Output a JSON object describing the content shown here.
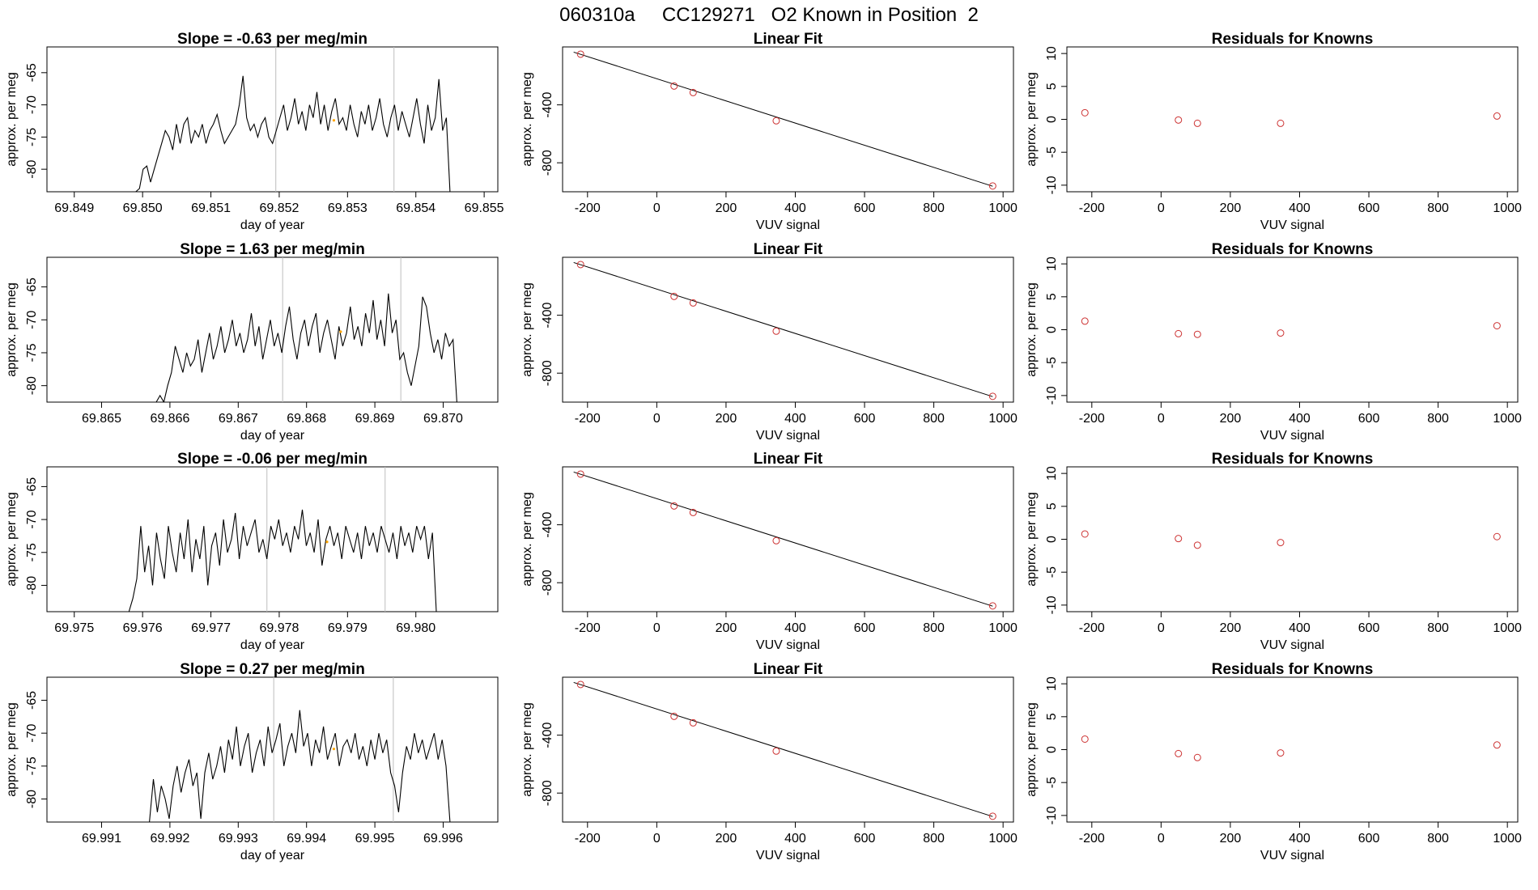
{
  "figure_title": "060310a     CC129271   O2 Known in Position  2",
  "colors": {
    "series_line": "#000000",
    "marker_points": "#cd3333",
    "highlight_point": "#ffa500",
    "window_marker": "#bebebe",
    "fit_line": "#000000"
  },
  "chart_data": [
    {
      "type": "line",
      "row": 0,
      "col": 0,
      "title": "Slope =  -0.63  per meg/min",
      "xlabel": "day of year",
      "ylabel": "approx. per meg",
      "xlim": [
        69.8486,
        69.8552
      ],
      "ylim": [
        -83.5,
        -61
      ],
      "xticks": [
        "69.849",
        "69.850",
        "69.851",
        "69.852",
        "69.853",
        "69.854",
        "69.855"
      ],
      "yticks": [
        "-65",
        "-70",
        "-75",
        "-80"
      ],
      "vlines": [
        69.85195,
        69.85368
      ],
      "highlight": [
        69.8528,
        -72.4
      ],
      "x_start": 69.8499,
      "x_end": 69.8545,
      "values": [
        -83.5,
        -83.0,
        -80.0,
        -79.5,
        -82.0,
        -80.0,
        -78.0,
        -76.0,
        -74.0,
        -75.0,
        -77.0,
        -73.0,
        -76.0,
        -73.0,
        -72.0,
        -76.0,
        -74.0,
        -75.0,
        -73.0,
        -76.0,
        -74.0,
        -73.0,
        -71.5,
        -74.0,
        -76.0,
        -75.0,
        -74.0,
        -73.0,
        -70.0,
        -65.5,
        -72.0,
        -74.0,
        -73.0,
        -75.0,
        -73.0,
        -72.0,
        -75.0,
        -76.0,
        -74.0,
        -72.0,
        -70.0,
        -74.0,
        -72.0,
        -69.0,
        -73.0,
        -71.0,
        -74.0,
        -70.0,
        -72.0,
        -68.0,
        -73.0,
        -70.0,
        -74.0,
        -71.0,
        -69.0,
        -73.0,
        -72.0,
        -74.0,
        -70.0,
        -73.0,
        -75.0,
        -71.0,
        -73.0,
        -70.0,
        -74.0,
        -72.0,
        -69.0,
        -73.0,
        -75.0,
        -72.0,
        -70.0,
        -74.0,
        -71.0,
        -73.0,
        -75.0,
        -72.0,
        -69.0,
        -73.0,
        -76.0,
        -70.0,
        -74.0,
        -72.0,
        -66.0,
        -74.0,
        -72.0,
        -83.5
      ]
    },
    {
      "type": "scatter",
      "row": 0,
      "col": 1,
      "title": "Linear Fit",
      "xlabel": "VUV signal",
      "ylabel": "approx. per meg",
      "xlim": [
        -272,
        1030
      ],
      "ylim": [
        -1000,
        0
      ],
      "xticks": [
        "-200",
        "0",
        "200",
        "400",
        "600",
        "800",
        "1000"
      ],
      "yticks": [
        "-400",
        "-800"
      ],
      "x": [
        -220,
        50,
        105,
        345,
        970
      ],
      "y": [
        -50,
        -270,
        -315,
        -510,
        -960
      ],
      "fit": [
        [
          -240,
          -36
        ],
        [
          970,
          -962
        ]
      ]
    },
    {
      "type": "scatter",
      "row": 0,
      "col": 2,
      "title": "Residuals for Knowns",
      "xlabel": "VUV signal",
      "ylabel": "approx. per meg",
      "xlim": [
        -272,
        1030
      ],
      "ylim": [
        -11,
        11
      ],
      "xticks": [
        "-200",
        "0",
        "200",
        "400",
        "600",
        "800",
        "1000"
      ],
      "yticks": [
        "10",
        "5",
        "0",
        "-5",
        "-10"
      ],
      "x": [
        -220,
        50,
        105,
        345,
        970
      ],
      "y": [
        1.0,
        -0.1,
        -0.6,
        -0.6,
        0.5
      ]
    },
    {
      "type": "line",
      "row": 1,
      "col": 0,
      "title": "Slope =  1.63  per meg/min",
      "xlabel": "day of year",
      "ylabel": "approx. per meg",
      "xlim": [
        69.8642,
        69.8708
      ],
      "ylim": [
        -82.5,
        -60.5
      ],
      "xticks": [
        "69.865",
        "69.866",
        "69.867",
        "69.868",
        "69.869",
        "69.870"
      ],
      "yticks": [
        "-65",
        "-70",
        "-75",
        "-80"
      ],
      "vlines": [
        69.86765,
        69.86938
      ],
      "highlight": [
        69.8685,
        -71.8
      ],
      "x_start": 69.8658,
      "x_end": 69.8702,
      "values": [
        -82.5,
        -81.5,
        -82.5,
        -80.0,
        -78.0,
        -74.0,
        -76.0,
        -78.0,
        -75.0,
        -77.0,
        -76.0,
        -73.0,
        -78.0,
        -75.0,
        -72.0,
        -76.0,
        -74.0,
        -71.0,
        -75.0,
        -73.0,
        -70.0,
        -74.0,
        -72.0,
        -75.0,
        -73.0,
        -69.0,
        -74.0,
        -71.0,
        -76.0,
        -73.0,
        -70.0,
        -74.0,
        -72.0,
        -75.0,
        -71.0,
        -68.0,
        -73.0,
        -76.0,
        -72.0,
        -70.0,
        -74.0,
        -71.0,
        -69.0,
        -75.0,
        -72.0,
        -70.0,
        -73.0,
        -76.0,
        -71.0,
        -74.0,
        -72.0,
        -68.0,
        -73.0,
        -71.0,
        -74.0,
        -69.0,
        -72.0,
        -67.0,
        -73.0,
        -70.0,
        -74.0,
        -66.0,
        -72.0,
        -70.0,
        -76.0,
        -75.0,
        -78.0,
        -80.0,
        -77.0,
        -74.0,
        -66.5,
        -68.0,
        -72.0,
        -75.0,
        -73.0,
        -76.0,
        -72.0,
        -74.0,
        -73.0,
        -82.5
      ]
    },
    {
      "type": "scatter",
      "row": 1,
      "col": 1,
      "title": "Linear Fit",
      "xlabel": "VUV signal",
      "ylabel": "approx. per meg",
      "xlim": [
        -272,
        1030
      ],
      "ylim": [
        -1000,
        0
      ],
      "xticks": [
        "-200",
        "0",
        "200",
        "400",
        "600",
        "800",
        "1000"
      ],
      "yticks": [
        "-400",
        "-800"
      ],
      "x": [
        -220,
        50,
        105,
        345,
        970
      ],
      "y": [
        -50,
        -270,
        -315,
        -510,
        -960
      ],
      "fit": [
        [
          -240,
          -36
        ],
        [
          970,
          -962
        ]
      ]
    },
    {
      "type": "scatter",
      "row": 1,
      "col": 2,
      "title": "Residuals for Knowns",
      "xlabel": "VUV signal",
      "ylabel": "approx. per meg",
      "xlim": [
        -272,
        1030
      ],
      "ylim": [
        -11,
        11
      ],
      "xticks": [
        "-200",
        "0",
        "200",
        "400",
        "600",
        "800",
        "1000"
      ],
      "yticks": [
        "10",
        "5",
        "0",
        "-5",
        "-10"
      ],
      "x": [
        -220,
        50,
        105,
        345,
        970
      ],
      "y": [
        1.3,
        -0.6,
        -0.7,
        -0.5,
        0.6
      ]
    },
    {
      "type": "line",
      "row": 2,
      "col": 0,
      "title": "Slope =  -0.06  per meg/min",
      "xlabel": "day of year",
      "ylabel": "approx. per meg",
      "xlim": [
        69.9746,
        69.9812
      ],
      "ylim": [
        -84,
        -62
      ],
      "xticks": [
        "69.975",
        "69.976",
        "69.977",
        "69.978",
        "69.979",
        "69.980"
      ],
      "yticks": [
        "-65",
        "-70",
        "-75",
        "-80"
      ],
      "vlines": [
        69.97782,
        69.97955
      ],
      "highlight": [
        69.9787,
        -73.4
      ],
      "x_start": 69.9758,
      "x_end": 69.9803,
      "values": [
        -84.0,
        -82.0,
        -79.0,
        -71.0,
        -78.0,
        -74.0,
        -80.0,
        -72.0,
        -76.0,
        -79.0,
        -71.0,
        -75.0,
        -78.0,
        -72.0,
        -76.0,
        -70.0,
        -78.0,
        -73.0,
        -76.0,
        -71.0,
        -80.0,
        -74.0,
        -72.0,
        -77.0,
        -70.0,
        -75.0,
        -73.0,
        -69.0,
        -76.0,
        -71.0,
        -74.0,
        -72.0,
        -70.0,
        -75.0,
        -73.0,
        -76.0,
        -71.0,
        -73.0,
        -70.0,
        -74.0,
        -72.0,
        -75.0,
        -71.0,
        -73.0,
        -68.5,
        -74.0,
        -72.0,
        -75.0,
        -70.0,
        -77.0,
        -73.0,
        -71.0,
        -74.0,
        -72.0,
        -76.0,
        -71.0,
        -73.0,
        -75.0,
        -72.0,
        -76.0,
        -71.0,
        -74.0,
        -72.0,
        -75.0,
        -71.0,
        -73.0,
        -75.0,
        -72.0,
        -76.0,
        -71.0,
        -74.0,
        -72.0,
        -75.0,
        -71.0,
        -73.0,
        -71.0,
        -76.0,
        -72.0,
        -84.0
      ]
    },
    {
      "type": "scatter",
      "row": 2,
      "col": 1,
      "title": "Linear Fit",
      "xlabel": "VUV signal",
      "ylabel": "approx. per meg",
      "xlim": [
        -272,
        1030
      ],
      "ylim": [
        -1000,
        0
      ],
      "xticks": [
        "-200",
        "0",
        "200",
        "400",
        "600",
        "800",
        "1000"
      ],
      "yticks": [
        "-400",
        "-800"
      ],
      "x": [
        -220,
        50,
        105,
        345,
        970
      ],
      "y": [
        -50,
        -270,
        -315,
        -510,
        -960
      ],
      "fit": [
        [
          -240,
          -36
        ],
        [
          970,
          -962
        ]
      ]
    },
    {
      "type": "scatter",
      "row": 2,
      "col": 2,
      "title": "Residuals for Knowns",
      "xlabel": "VUV signal",
      "ylabel": "approx. per meg",
      "xlim": [
        -272,
        1030
      ],
      "ylim": [
        -11,
        11
      ],
      "xticks": [
        "-200",
        "0",
        "200",
        "400",
        "600",
        "800",
        "1000"
      ],
      "yticks": [
        "10",
        "5",
        "0",
        "-5",
        "-10"
      ],
      "x": [
        -220,
        50,
        105,
        345,
        970
      ],
      "y": [
        0.8,
        0.1,
        -0.9,
        -0.5,
        0.4
      ]
    },
    {
      "type": "line",
      "row": 3,
      "col": 0,
      "title": "Slope =  0.27  per meg/min",
      "xlabel": "day of year",
      "ylabel": "approx. per meg",
      "xlim": [
        69.9902,
        69.9968
      ],
      "ylim": [
        -83.5,
        -61.5
      ],
      "xticks": [
        "69.991",
        "69.992",
        "69.993",
        "69.994",
        "69.995",
        "69.996"
      ],
      "yticks": [
        "-65",
        "-70",
        "-75",
        "-80"
      ],
      "vlines": [
        69.99352,
        69.99527
      ],
      "highlight": [
        69.9944,
        -72.4
      ],
      "x_start": 69.9917,
      "x_end": 69.9961,
      "values": [
        -83.5,
        -77.0,
        -82.0,
        -78.0,
        -80.0,
        -83.0,
        -78.0,
        -75.0,
        -79.0,
        -76.0,
        -74.0,
        -78.0,
        -76.0,
        -83.0,
        -76.0,
        -73.0,
        -77.0,
        -75.0,
        -72.0,
        -76.0,
        -71.0,
        -74.0,
        -69.0,
        -75.0,
        -72.0,
        -70.0,
        -76.0,
        -73.0,
        -71.0,
        -75.0,
        -69.0,
        -73.0,
        -71.0,
        -68.5,
        -75.0,
        -72.0,
        -70.0,
        -73.0,
        -66.5,
        -72.0,
        -70.0,
        -75.0,
        -71.0,
        -73.0,
        -69.0,
        -74.0,
        -72.0,
        -70.0,
        -75.0,
        -72.0,
        -71.0,
        -73.0,
        -70.0,
        -74.0,
        -72.0,
        -75.0,
        -71.0,
        -74.0,
        -70.0,
        -73.0,
        -71.0,
        -76.0,
        -78.0,
        -82.0,
        -76.0,
        -72.0,
        -74.0,
        -70.0,
        -73.0,
        -71.0,
        -74.0,
        -72.0,
        -70.0,
        -74.0,
        -71.0,
        -75.0,
        -83.5
      ]
    },
    {
      "type": "scatter",
      "row": 3,
      "col": 1,
      "title": "Linear Fit",
      "xlabel": "VUV signal",
      "ylabel": "approx. per meg",
      "xlim": [
        -272,
        1030
      ],
      "ylim": [
        -1000,
        0
      ],
      "xticks": [
        "-200",
        "0",
        "200",
        "400",
        "600",
        "800",
        "1000"
      ],
      "yticks": [
        "-400",
        "-800"
      ],
      "x": [
        -220,
        50,
        105,
        345,
        970
      ],
      "y": [
        -50,
        -270,
        -315,
        -510,
        -960
      ],
      "fit": [
        [
          -240,
          -36
        ],
        [
          970,
          -962
        ]
      ]
    },
    {
      "type": "scatter",
      "row": 3,
      "col": 2,
      "title": "Residuals for Knowns",
      "xlabel": "VUV signal",
      "ylabel": "approx. per meg",
      "xlim": [
        -272,
        1030
      ],
      "ylim": [
        -11,
        11
      ],
      "xticks": [
        "-200",
        "0",
        "200",
        "400",
        "600",
        "800",
        "1000"
      ],
      "yticks": [
        "10",
        "5",
        "0",
        "-5",
        "-10"
      ],
      "x": [
        -220,
        50,
        105,
        345,
        970
      ],
      "y": [
        1.6,
        -0.6,
        -1.2,
        -0.5,
        0.7
      ]
    }
  ]
}
